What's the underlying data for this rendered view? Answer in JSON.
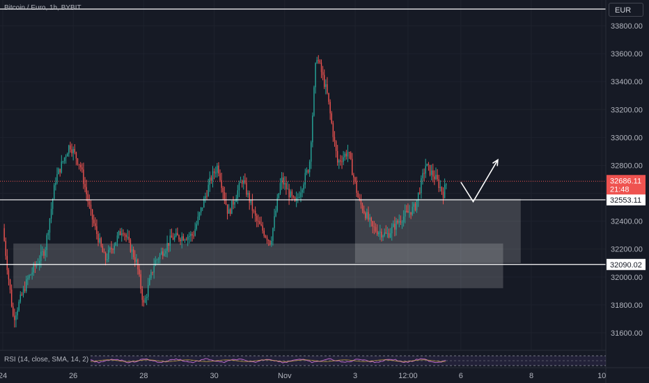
{
  "header": {
    "title": "Bitcoin / Euro, 1h, BYBIT",
    "currency": "EUR"
  },
  "indicator": {
    "label": "RSI (14, close, SMA, 14, 2)"
  },
  "colors": {
    "up": "#26a69a",
    "down": "#ef5350",
    "bg": "#161a25",
    "grid": "#1e222d",
    "zone": "#ffffff",
    "line": "#ffffff"
  },
  "chart_data": {
    "type": "candlestick",
    "symbol": "Bitcoin / Euro",
    "interval": "1h",
    "exchange": "BYBIT",
    "y_ticks": [
      31600,
      31800,
      32000,
      32200,
      32400,
      32600,
      32800,
      33000,
      33200,
      33400,
      33600,
      33800
    ],
    "ylim": [
      31460,
      33930
    ],
    "x_ticks": [
      {
        "label": "24",
        "day": 24.0
      },
      {
        "label": "26",
        "day": 26.0
      },
      {
        "label": "28",
        "day": 28.0
      },
      {
        "label": "30",
        "day": 30.0
      },
      {
        "label": "Nov",
        "day": 32.0
      },
      {
        "label": "3",
        "day": 34.0
      },
      {
        "label": "12:00",
        "day": 35.5
      },
      {
        "label": "6",
        "day": 37.0
      },
      {
        "label": "8",
        "day": 39.0
      },
      {
        "label": "10",
        "day": 41.0
      }
    ],
    "current_price": {
      "value": 32686.11,
      "countdown": "21:48"
    },
    "horizontal_lines": [
      {
        "value": 33900,
        "label": ""
      },
      {
        "value": 32553.11,
        "label": "32553.11"
      },
      {
        "value": 32090.02,
        "label": "32090.02"
      }
    ],
    "zones": [
      {
        "from_day": 24.3,
        "to_day": 38.2,
        "low": 31920,
        "high": 32240
      },
      {
        "from_day": 34.0,
        "to_day": 38.7,
        "low": 32100,
        "high": 32560
      }
    ],
    "projection": [
      {
        "day": 37.0,
        "price": 32680
      },
      {
        "day": 37.35,
        "price": 32540
      },
      {
        "day": 38.05,
        "price": 32840
      }
    ],
    "anchors": [
      {
        "day": 24.0,
        "price": 32350
      },
      {
        "day": 24.3,
        "price": 31700
      },
      {
        "day": 24.7,
        "price": 31980
      },
      {
        "day": 25.2,
        "price": 32200
      },
      {
        "day": 25.5,
        "price": 32700
      },
      {
        "day": 25.9,
        "price": 32950
      },
      {
        "day": 26.2,
        "price": 32800
      },
      {
        "day": 26.5,
        "price": 32450
      },
      {
        "day": 26.9,
        "price": 32120
      },
      {
        "day": 27.4,
        "price": 32350
      },
      {
        "day": 27.8,
        "price": 32100
      },
      {
        "day": 28.0,
        "price": 31800
      },
      {
        "day": 28.3,
        "price": 32100
      },
      {
        "day": 28.8,
        "price": 32280
      },
      {
        "day": 29.4,
        "price": 32300
      },
      {
        "day": 29.9,
        "price": 32700
      },
      {
        "day": 30.1,
        "price": 32800
      },
      {
        "day": 30.4,
        "price": 32450
      },
      {
        "day": 30.8,
        "price": 32700
      },
      {
        "day": 31.2,
        "price": 32400
      },
      {
        "day": 31.6,
        "price": 32250
      },
      {
        "day": 31.9,
        "price": 32700
      },
      {
        "day": 32.3,
        "price": 32520
      },
      {
        "day": 32.7,
        "price": 32800
      },
      {
        "day": 32.9,
        "price": 33600
      },
      {
        "day": 33.2,
        "price": 33320
      },
      {
        "day": 33.5,
        "price": 32820
      },
      {
        "day": 33.8,
        "price": 32900
      },
      {
        "day": 34.1,
        "price": 32550
      },
      {
        "day": 34.5,
        "price": 32350
      },
      {
        "day": 34.9,
        "price": 32300
      },
      {
        "day": 35.3,
        "price": 32420
      },
      {
        "day": 35.7,
        "price": 32500
      },
      {
        "day": 36.0,
        "price": 32800
      },
      {
        "day": 36.3,
        "price": 32700
      },
      {
        "day": 36.5,
        "price": 32600
      },
      {
        "day": 36.6,
        "price": 32680
      }
    ]
  }
}
